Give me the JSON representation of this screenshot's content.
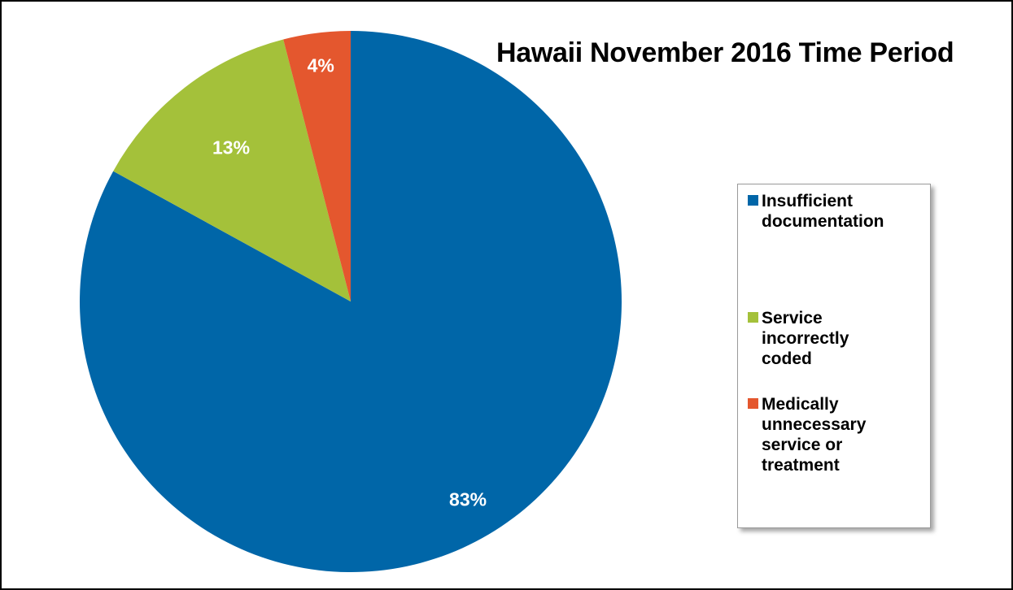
{
  "chart_data": {
    "type": "pie",
    "title": "Hawaii November 2016 Time Period",
    "categories": [
      "Insufficient documentation",
      "Service incorrectly coded",
      "Medically unnecessary service or treatment"
    ],
    "values": [
      83,
      13,
      4
    ],
    "data_labels": [
      "83%",
      "13%",
      "4%"
    ],
    "colors": [
      "#0066A8",
      "#A4C13A",
      "#E4572E"
    ],
    "legend_placement": "right",
    "legend_lines": [
      [
        "Insufficient",
        "documentation"
      ],
      [
        "Service",
        "incorrectly",
        "coded"
      ],
      [
        "Medically",
        "unnecessary",
        "service or",
        "treatment"
      ]
    ],
    "start": "top",
    "direction": "clockwise"
  }
}
